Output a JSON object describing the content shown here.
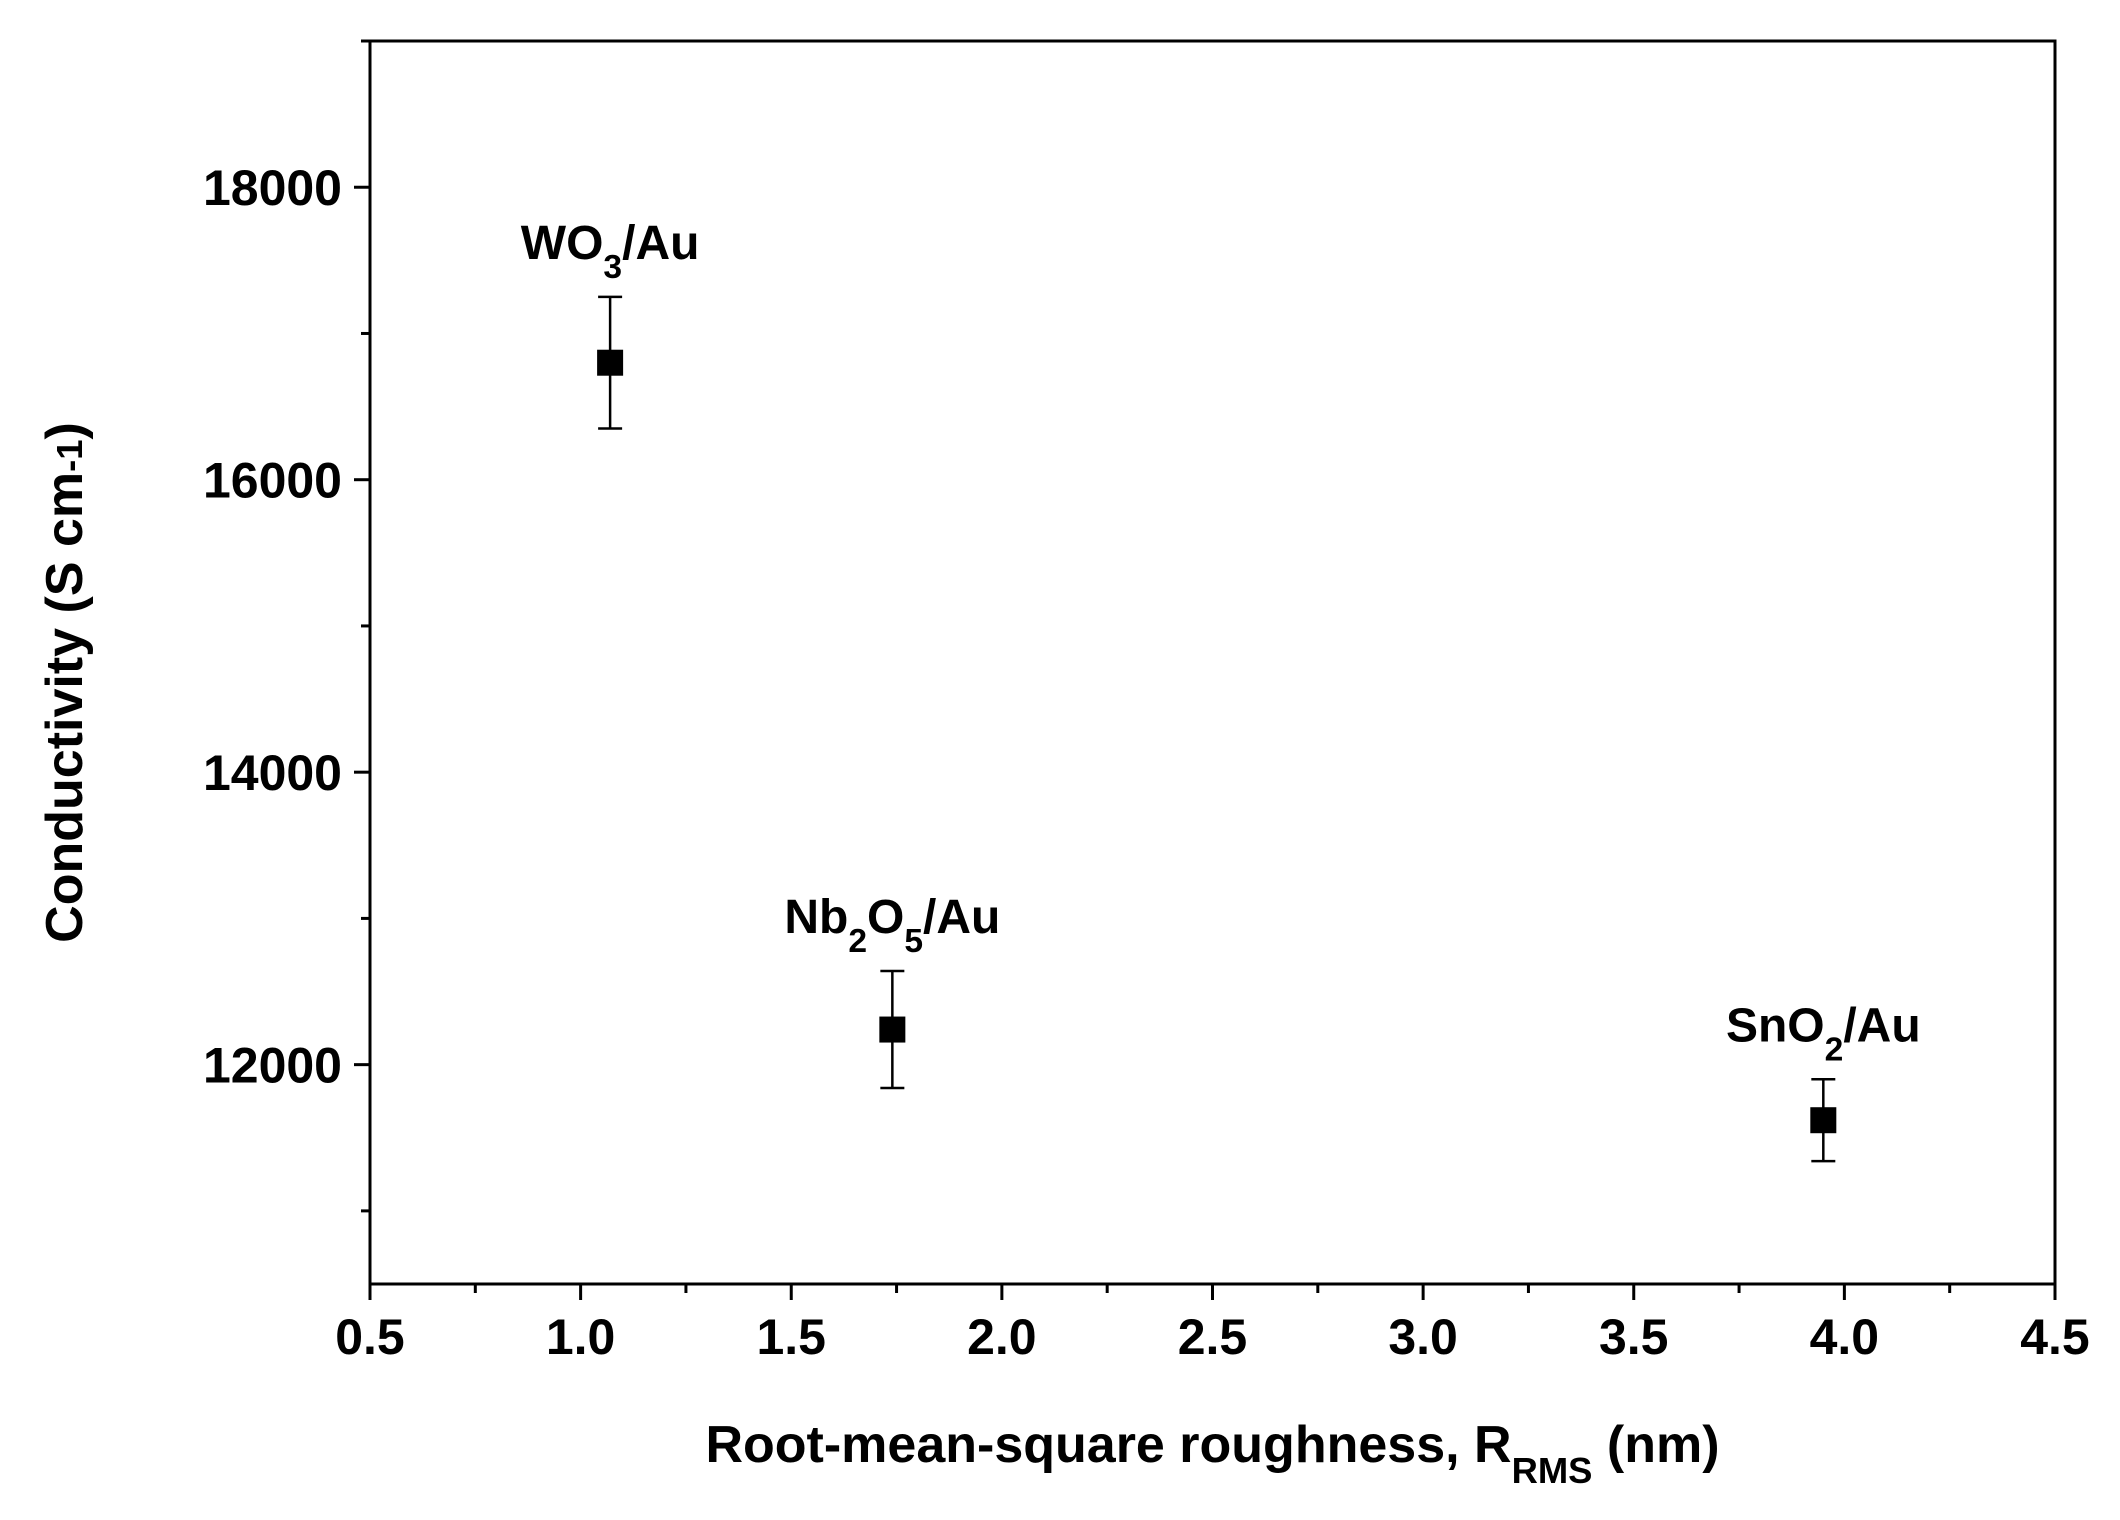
{
  "chart_data": {
    "type": "scatter",
    "x_label": {
      "text": "Root-mean-square roughness, R",
      "sub": "RMS",
      "tail": " (nm)"
    },
    "y_label": {
      "text": "Conductivity (S cm",
      "sup": "-1",
      "tail": ")"
    },
    "x": [
      1.07,
      1.74,
      3.95
    ],
    "values": [
      16800,
      12240,
      11620
    ],
    "errors": [
      450,
      400,
      280
    ],
    "color": "#000000",
    "annotations": [
      {
        "text": "WO",
        "sub": "3",
        "tail": "/Au"
      },
      {
        "text": "Nb",
        "sub": "2",
        "mid": "O",
        "sub2": "5",
        "tail": "/Au"
      },
      {
        "text": "SnO",
        "sub": "2",
        "tail": "/Au"
      }
    ],
    "xlim": [
      0.5,
      4.5
    ],
    "xticks": [
      {
        "value": 0.5,
        "label": "0.5"
      },
      {
        "value": 1,
        "label": "1.0"
      },
      {
        "value": 1.5,
        "label": "1.5"
      },
      {
        "value": 2,
        "label": "2.0"
      },
      {
        "value": 2.5,
        "label": "2.5"
      },
      {
        "value": 3,
        "label": "3.0"
      },
      {
        "value": 3.5,
        "label": "3.5"
      },
      {
        "value": 4,
        "label": "4.0"
      },
      {
        "value": 4.5,
        "label": "4.5"
      }
    ],
    "x_minor_ticks": [
      0.75,
      1.25,
      1.75,
      2.25,
      2.75,
      3.25,
      3.75,
      4.25
    ],
    "ylim": [
      10500,
      19000
    ],
    "yticks": [
      12000,
      14000,
      16000,
      18000
    ],
    "y_minor_ticks": [
      11000,
      13000,
      15000,
      17000,
      19000
    ],
    "grid": false
  }
}
